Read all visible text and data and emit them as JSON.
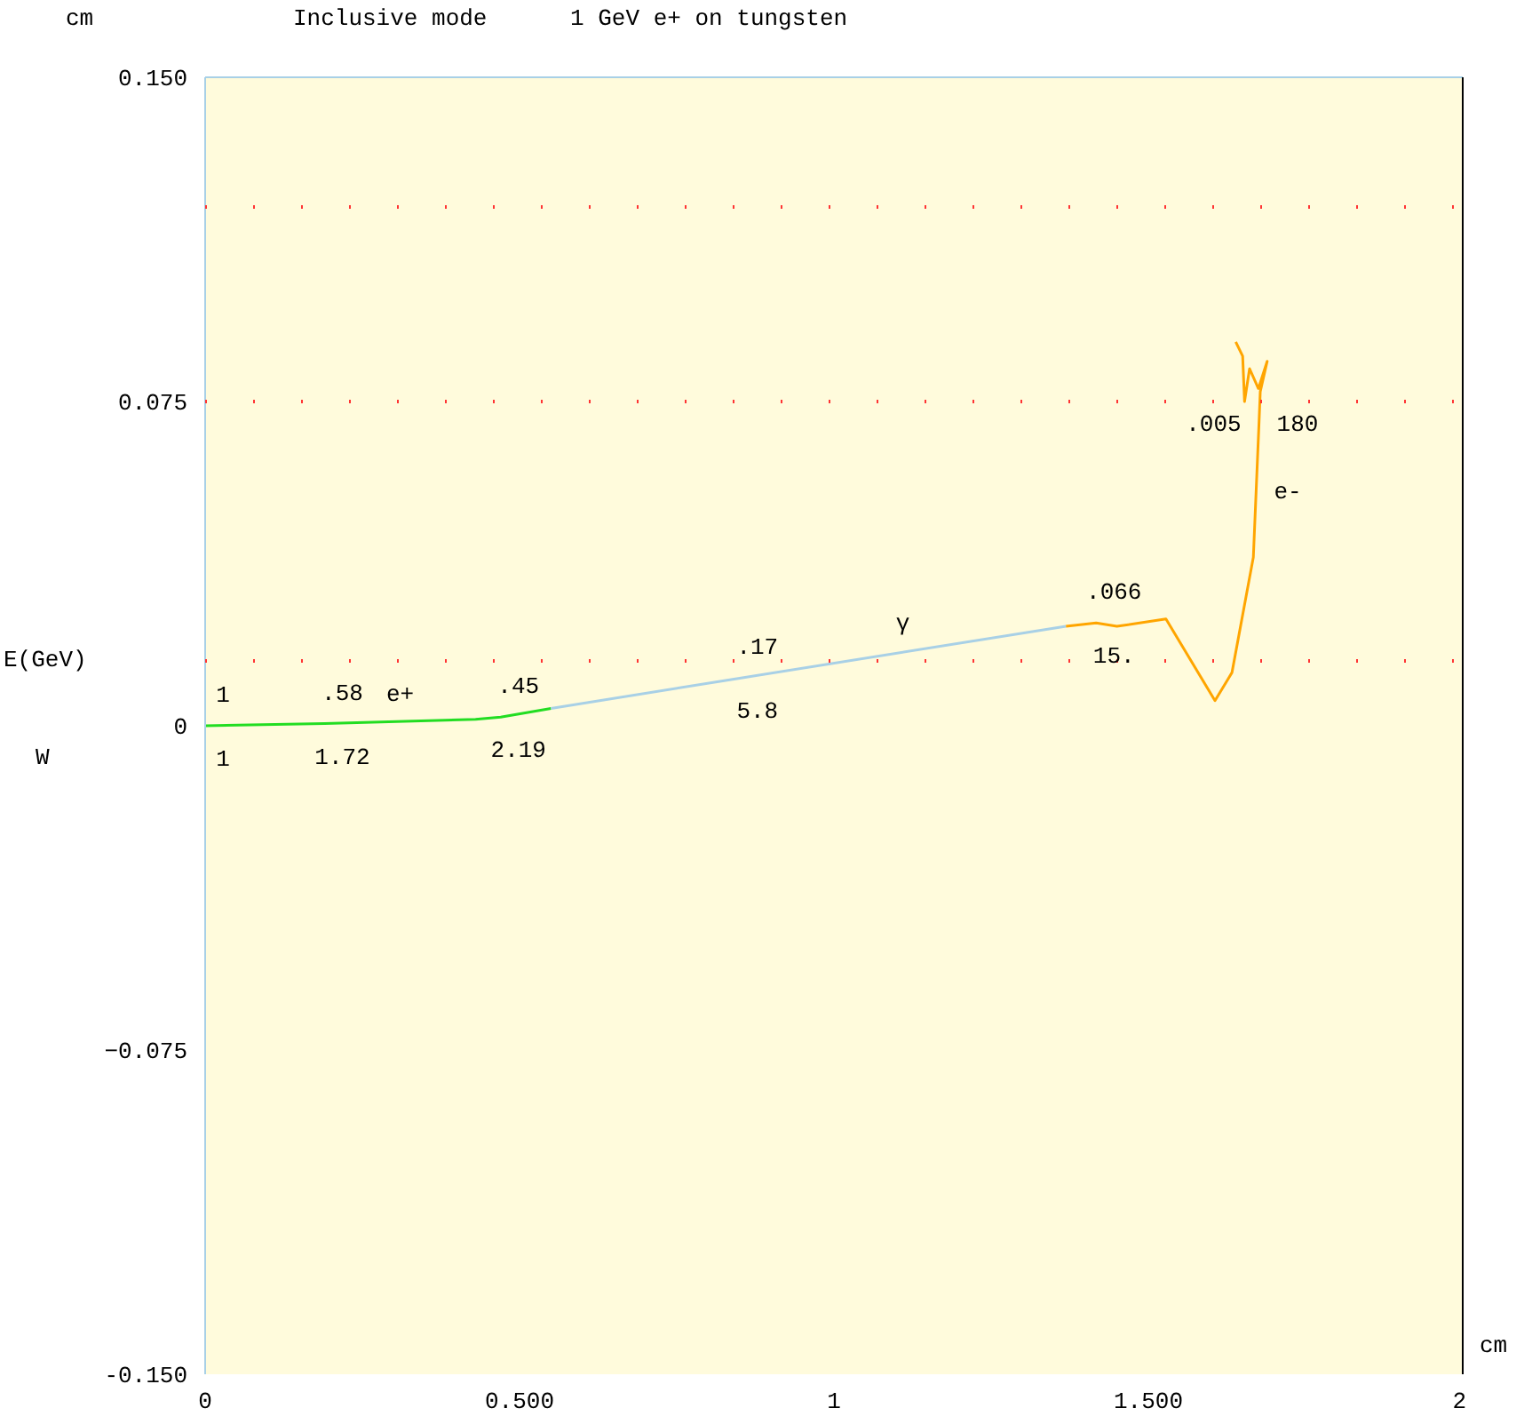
{
  "chart_data": {
    "type": "line",
    "title": "Inclusive mode      1 GeV e+ on tungsten",
    "xlabel": "cm",
    "ylabel": "cm",
    "xlim": [
      0,
      2
    ],
    "ylim": [
      -0.15,
      0.15
    ],
    "xticks": [
      0,
      {
        "value": 0.5,
        "label": "0.500"
      },
      1,
      {
        "value": 1.5,
        "label": "1.500"
      },
      2
    ],
    "yticks": [
      {
        "value": -0.15,
        "label": "-0.150"
      },
      -0.075,
      0,
      0.075,
      {
        "value": 0.15,
        "label": "0.150"
      }
    ],
    "grid": false,
    "marker": "none",
    "line_style": "solid",
    "ref_lines": [
      {
        "axis": "y",
        "value": 0.12,
        "color": "#ff3333",
        "line_style": "dotted"
      },
      {
        "axis": "y",
        "value": 0.075,
        "color": "#ff3333",
        "line_style": "dotted"
      },
      {
        "axis": "y",
        "value": 0.015,
        "color": "#ff3333",
        "line_style": "dotted"
      }
    ],
    "series": [
      {
        "name": "e+",
        "color": "#22dd22",
        "x": [
          0,
          0.19,
          0.43,
          0.47,
          0.55
        ],
        "values": [
          0,
          0.0005,
          0.0015,
          0.002,
          0.004
        ]
      },
      {
        "name": "γ",
        "color": "#a8d0e6",
        "x": [
          0.55,
          0.85,
          1.369
        ],
        "values": [
          0.004,
          0.011,
          0.023
        ]
      },
      {
        "name": "e-",
        "color": "#ffa500",
        "x": [
          1.369,
          1.417,
          1.45,
          1.528,
          1.606,
          1.633,
          1.667,
          1.676,
          1.678,
          1.689,
          1.675,
          1.661,
          1.653,
          1.65,
          1.639
        ],
        "values": [
          0.023,
          0.0238,
          0.023,
          0.0247,
          0.0058,
          0.0123,
          0.039,
          0.07,
          0.0773,
          0.0843,
          0.078,
          0.0826,
          0.075,
          0.0855,
          0.0888
        ]
      }
    ],
    "annotations": [
      "E(GeV)",
      "W",
      {
        "text": "1",
        "x": 0,
        "y": 0
      },
      {
        "text": "1",
        "x": 0,
        "y": 0
      },
      {
        "text": ".58",
        "x": 0.19,
        "y": 0.0005
      },
      {
        "text": "1.72",
        "x": 0.19,
        "y": 0.0005
      },
      {
        "text": ".45",
        "x": 0.47,
        "y": 0.002
      },
      {
        "text": "2.19",
        "x": 0.47,
        "y": 0.002
      },
      {
        "text": ".17",
        "x": 0.85,
        "y": 0.011
      },
      {
        "text": "5.8",
        "x": 0.85,
        "y": 0.011
      },
      {
        "text": ".066",
        "x": 1.417,
        "y": 0.0238
      },
      {
        "text": "15.",
        "x": 1.417,
        "y": 0.0238
      },
      {
        "text": ".005",
        "x": 1.676,
        "y": 0.07
      },
      {
        "text": "180",
        "x": 1.676,
        "y": 0.07
      }
    ]
  }
}
